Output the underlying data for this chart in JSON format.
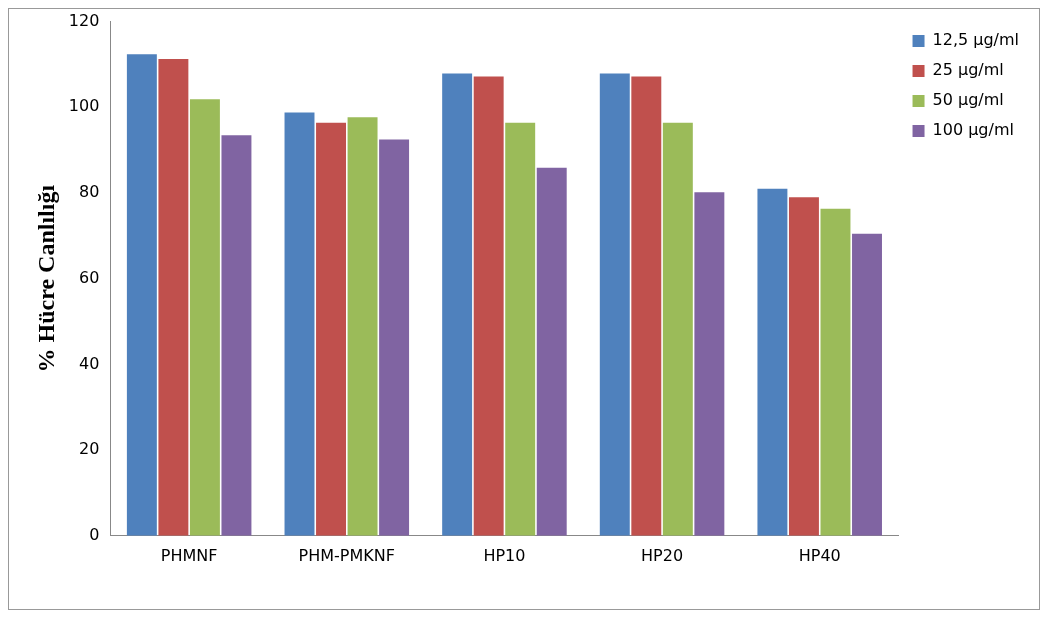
{
  "chart_data": {
    "type": "bar",
    "ylabel": "% Hücre Canlılığı",
    "categories": [
      "PHMNF",
      "PHM-PMKNF",
      "HP10",
      "HP20",
      "HP40"
    ],
    "series": [
      {
        "name": "12,5 µg/ml",
        "color": "#4f81bd",
        "values": [
          112.4,
          98.8,
          107.9,
          107.9,
          81
        ]
      },
      {
        "name": "25 µg/ml",
        "color": "#c0504d",
        "values": [
          111.3,
          96.4,
          107.2,
          107.2,
          79
        ]
      },
      {
        "name": "50 µg/ml",
        "color": "#9bbb59",
        "values": [
          101.9,
          97.7,
          96.4,
          96.4,
          76.3
        ]
      },
      {
        "name": "100 µg/ml",
        "color": "#8064a2",
        "values": [
          93.5,
          92.5,
          85.9,
          80.2,
          70.5
        ]
      }
    ],
    "ylim": [
      0,
      120
    ],
    "yticks": [
      0,
      20,
      40,
      60,
      80,
      100,
      120
    ],
    "grid": false,
    "legend": "top right"
  }
}
